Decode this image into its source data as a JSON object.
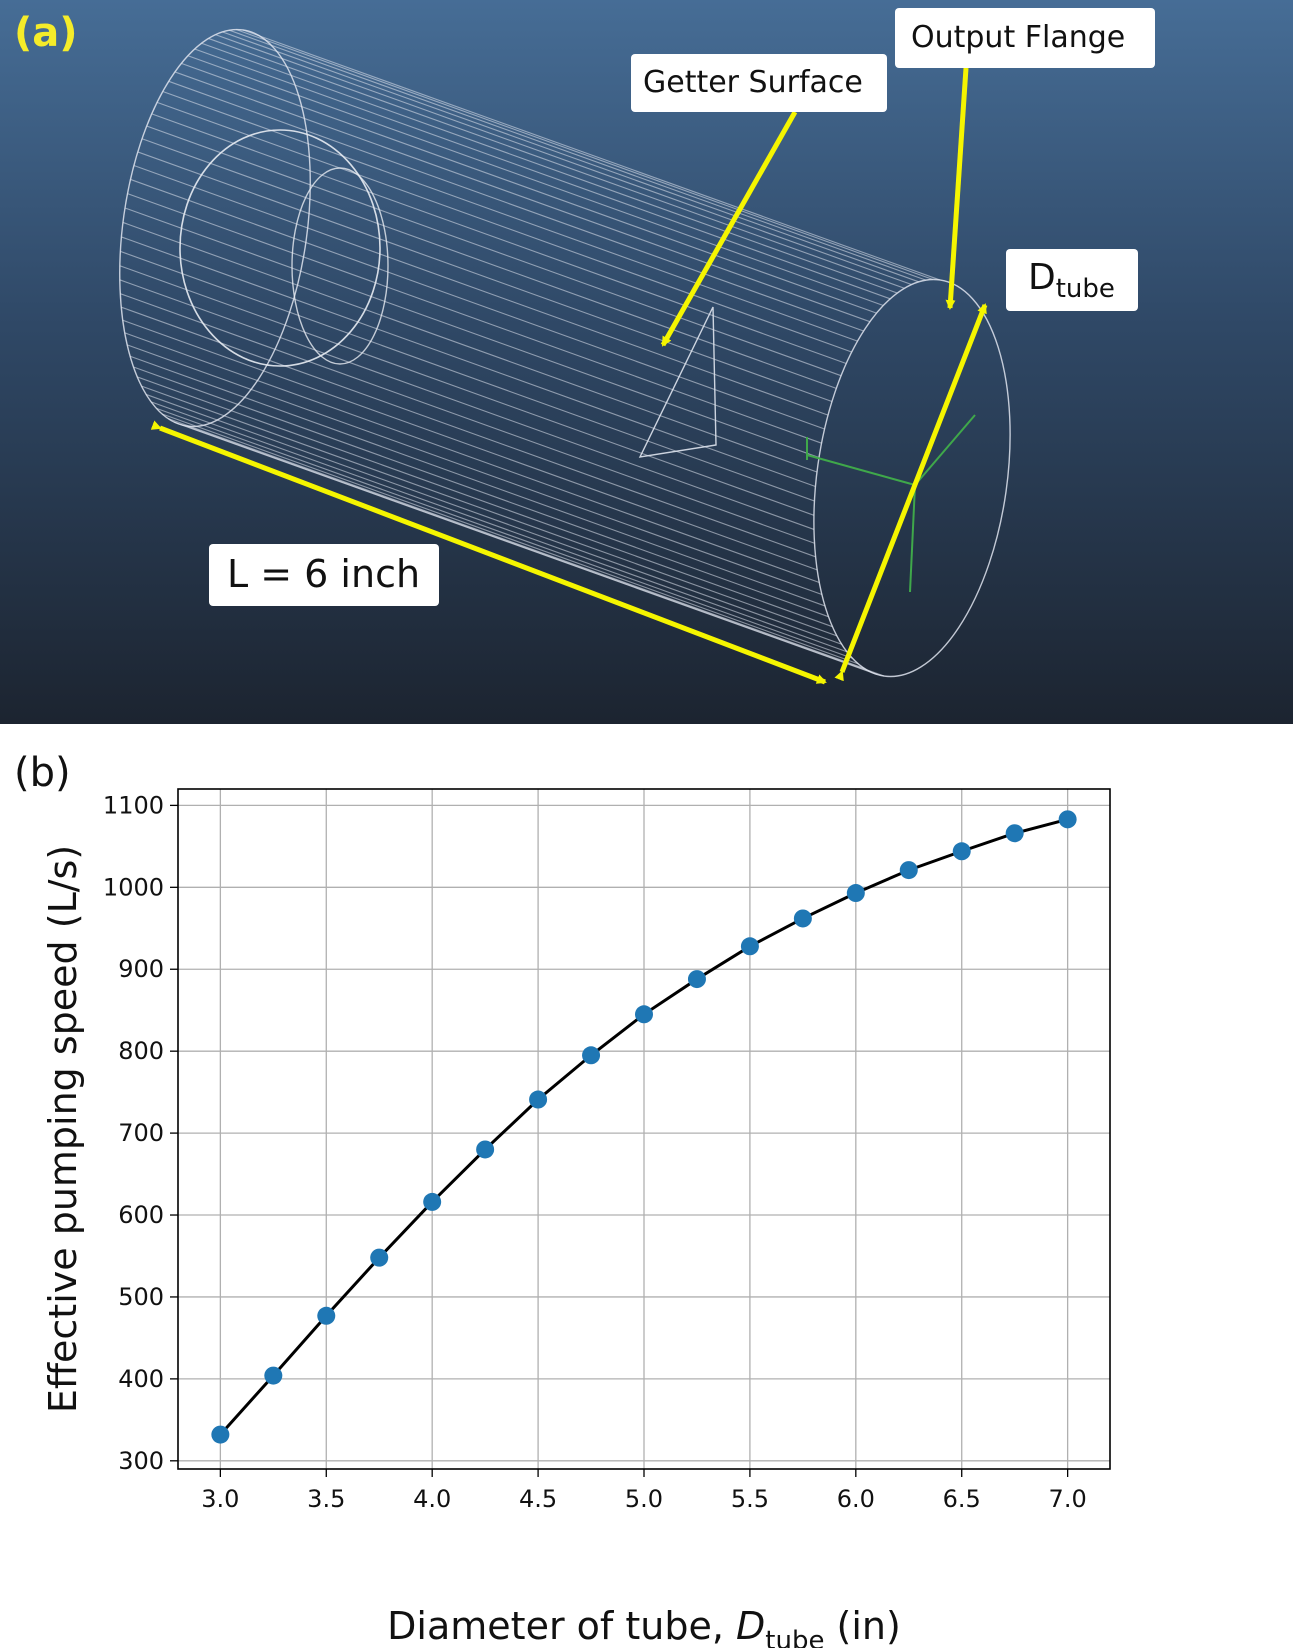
{
  "panel_a": {
    "label": "(a)",
    "callouts": {
      "output_flange": "Output Flange",
      "getter_surface": "Getter Surface",
      "d_tube_main": "D",
      "d_tube_sub": "tube",
      "length": "L = 6 inch"
    },
    "colors": {
      "arrow": "#f5f500",
      "wireframe": "#dfe4ee",
      "axes": "#3fa84a"
    }
  },
  "panel_b": {
    "label": "(b)"
  },
  "chart_data": {
    "type": "line",
    "xlabel_prefix": "Diameter of tube, ",
    "xlabel_var": "D",
    "xlabel_sub": "tube",
    "xlabel_suffix": " (in)",
    "ylabel": "Effective pumping speed (L/s)",
    "xlim": [
      2.8,
      7.2
    ],
    "ylim": [
      290,
      1120
    ],
    "xticks": [
      "3.0",
      "3.5",
      "4.0",
      "4.5",
      "5.0",
      "5.5",
      "6.0",
      "6.5",
      "7.0"
    ],
    "yticks": [
      "300",
      "400",
      "500",
      "600",
      "700",
      "800",
      "900",
      "1000",
      "1100"
    ],
    "grid": true,
    "series": [
      {
        "line_color": "#000000",
        "marker_color": "#1f77b4",
        "x": [
          3.0,
          3.25,
          3.5,
          3.75,
          4.0,
          4.25,
          4.5,
          4.75,
          5.0,
          5.25,
          5.5,
          5.75,
          6.0,
          6.25,
          6.5,
          6.75,
          7.0
        ],
        "y": [
          332,
          404,
          477,
          548,
          616,
          680,
          741,
          795,
          845,
          888,
          928,
          962,
          993,
          1021,
          1044,
          1066,
          1083
        ]
      }
    ]
  }
}
